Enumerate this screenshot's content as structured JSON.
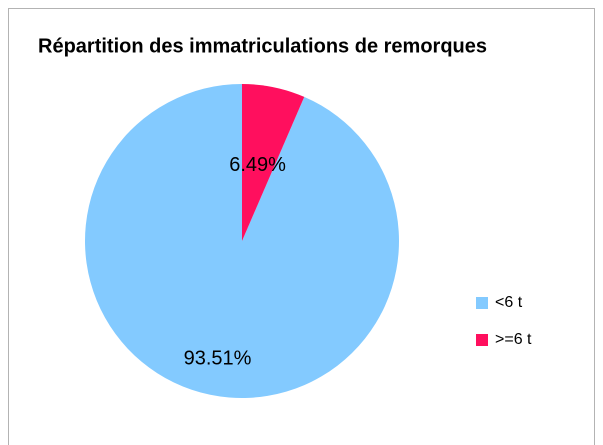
{
  "chart_data": {
    "type": "pie",
    "title": "Répartition des immatriculations de remorques",
    "categories": [
      "<6 t",
      ">=6 t"
    ],
    "values": [
      93.51,
      6.49
    ],
    "value_labels": [
      "93.51%",
      "6.49%"
    ],
    "colors": [
      "#83caff",
      "#ff0f5e"
    ],
    "legend": "right"
  }
}
